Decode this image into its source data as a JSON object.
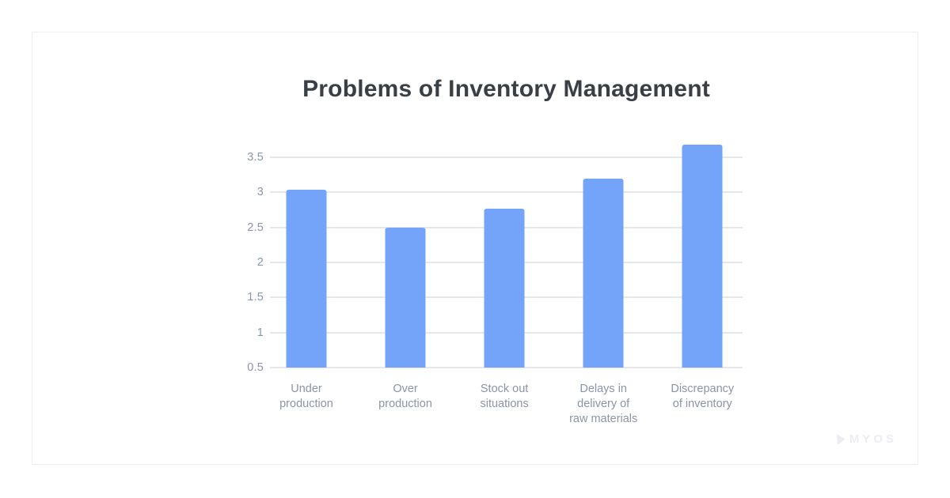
{
  "chart_data": {
    "type": "bar",
    "title": "Problems of Inventory Management",
    "categories": [
      "Under production",
      "Over production",
      "Stock out situations",
      "Delays in delivery of raw materials",
      "Discrepancy of inventory"
    ],
    "category_lines": [
      [
        "Under",
        "production"
      ],
      [
        "Over",
        "production"
      ],
      [
        "Stock out",
        "situations"
      ],
      [
        "Delays in",
        "delivery of",
        "raw materials"
      ],
      [
        "Discrepancy",
        "of inventory"
      ]
    ],
    "values": [
      3.04,
      2.5,
      2.77,
      3.2,
      3.68
    ],
    "xlabel": "",
    "ylabel": "",
    "baseline": 0.5,
    "ylim": [
      0.5,
      3.75
    ],
    "ytick_values": [
      0.5,
      1,
      1.5,
      2,
      2.5,
      3,
      3.5
    ],
    "ytick_labels": [
      "0.5",
      "1",
      "1.5",
      "2",
      "2.5",
      "3",
      "3.5"
    ],
    "grid": true,
    "legend_position": "none",
    "colors": {
      "bar": "#74a3fa",
      "gridline": "#e6e7ea",
      "tick_label": "#8b94a8",
      "title": "#3a3e45"
    }
  },
  "branding": {
    "logo_text": "MYOS",
    "logo_color": "#ecedf3"
  }
}
